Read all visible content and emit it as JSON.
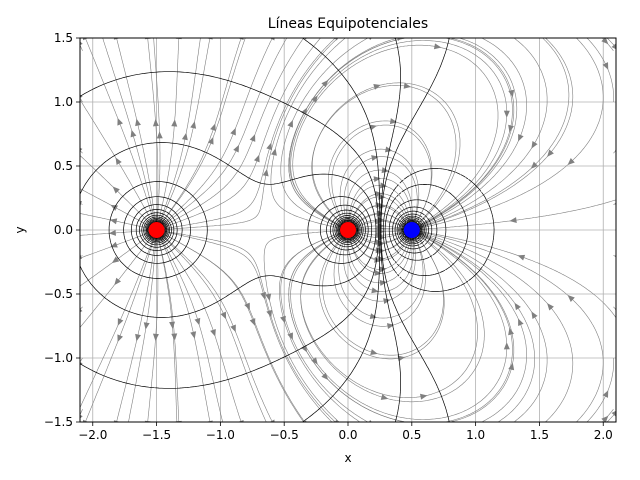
{
  "chart_data": {
    "type": "line",
    "title": "Líneas Equipotenciales",
    "xlabel": "x",
    "ylabel": "y",
    "xlim": [
      -2.1,
      2.1
    ],
    "ylim": [
      -1.5,
      1.5
    ],
    "x_ticks": [
      -2.0,
      -1.5,
      -1.0,
      -0.5,
      0.0,
      0.5,
      1.0,
      1.5,
      2.0
    ],
    "y_ticks": [
      -1.5,
      -1.0,
      -0.5,
      0.0,
      0.5,
      1.0,
      1.5
    ],
    "x_tick_labels": [
      "−2.0",
      "−1.5",
      "−1.0",
      "−0.5",
      "0.0",
      "0.5",
      "1.0",
      "1.5",
      "2.0"
    ],
    "y_tick_labels": [
      "−1.5",
      "−1.0",
      "−0.5",
      "0.0",
      "0.5",
      "1.0",
      "1.5"
    ],
    "grid": true,
    "charges": [
      {
        "x": -1.5,
        "y": 0.0,
        "q": 1,
        "color": "#ff0000"
      },
      {
        "x": 0.0,
        "y": 0.0,
        "q": 1,
        "color": "#ff0000"
      },
      {
        "x": 0.5,
        "y": 0.0,
        "q": -1,
        "color": "#0000ff"
      }
    ],
    "equipotential_color": "#000000",
    "field_line_color": "#808080"
  }
}
